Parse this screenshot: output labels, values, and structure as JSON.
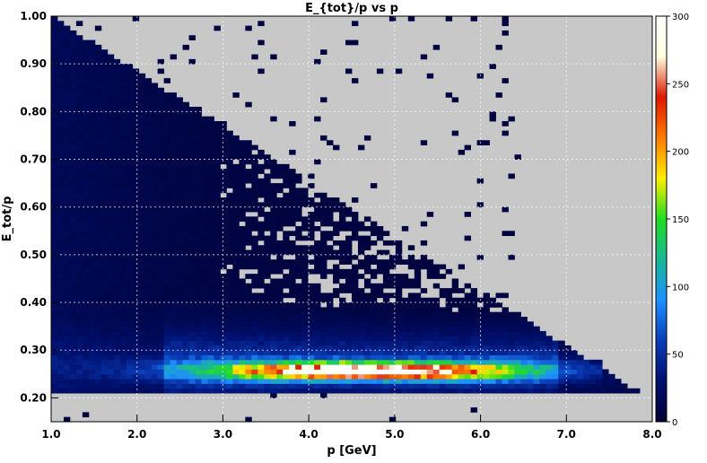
{
  "chart_data": {
    "type": "heatmap",
    "title": "E_{tot}/p vs p",
    "xlabel": "p [GeV]",
    "ylabel": "E_tot/p",
    "xlim": [
      1.0,
      8.0
    ],
    "ylim": [
      0.15,
      1.0
    ],
    "x_ticks": [
      "1.0",
      "2.0",
      "3.0",
      "4.0",
      "5.0",
      "6.0",
      "7.0",
      "8.0"
    ],
    "y_ticks": [
      "0.20",
      "0.30",
      "0.40",
      "0.50",
      "0.60",
      "0.70",
      "0.80",
      "0.90",
      "1.00"
    ],
    "grid": true,
    "background_color": "#c8c8c8",
    "colorbar": {
      "range": [
        0,
        300
      ],
      "ticks": [
        "0",
        "50",
        "100",
        "150",
        "200",
        "250",
        "300"
      ],
      "colormap": [
        "#000033",
        "#00106e",
        "#0a3db8",
        "#1e90ff",
        "#19b894",
        "#22dd22",
        "#ffee00",
        "#ff7a00",
        "#dd1800",
        "#ffffe0",
        "#ffffff"
      ]
    },
    "band": {
      "peak_ratio": 0.257,
      "x_start": 1.0,
      "x_end": 7.4,
      "peak_region_x": [
        3.0,
        6.2
      ],
      "max_count": 300
    }
  }
}
